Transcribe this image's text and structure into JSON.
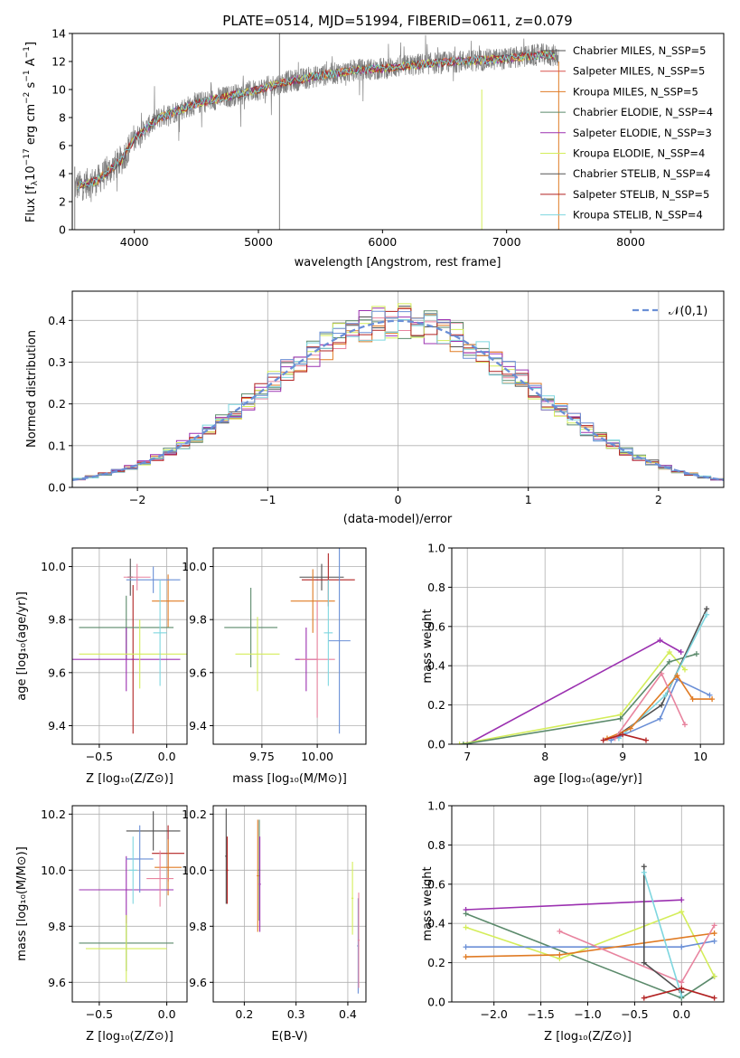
{
  "chart_data": [
    {
      "type": "line",
      "title": "PLATE=0514, MJD=51994, FIBERID=0611, z=0.079",
      "xlabel": "wavelength [Angstrom, rest frame]",
      "ylabel": "Flux [f_λ10^{-17} erg cm^{-2} s^{-1} A^{-1}]",
      "xlim": [
        3500,
        8750
      ],
      "ylim": [
        0,
        14
      ],
      "xticks": [
        "4000",
        "5000",
        "6000",
        "7000",
        "8000"
      ],
      "yticks": [
        "0",
        "2",
        "4",
        "6",
        "8",
        "10",
        "12",
        "14"
      ],
      "series": [
        {
          "name": "Chabrier MILES, N_SSP=5",
          "color": "#4f4f4f"
        },
        {
          "name": "Salpeter MILES, N_SSP=5",
          "color": "#d9534f"
        },
        {
          "name": "Kroupa MILES, N_SSP=5",
          "color": "#e07b24"
        },
        {
          "name": "Chabrier ELODIE, N_SSP=4",
          "color": "#5b8a6b"
        },
        {
          "name": "Salpeter ELODIE, N_SSP=3",
          "color": "#9b30b0"
        },
        {
          "name": "Kroupa ELODIE, N_SSP=4",
          "color": "#d4ed5a"
        },
        {
          "name": "Chabrier STELIB, N_SSP=4",
          "color": "#555555"
        },
        {
          "name": "Salpeter STELIB, N_SSP=5",
          "color": "#b22222"
        },
        {
          "name": "Kroupa STELIB, N_SSP=4",
          "color": "#7ed6df"
        }
      ],
      "spectrum_envelope": {
        "x": [
          3500,
          3700,
          3900,
          4000,
          4200,
          4500,
          4800,
          5000,
          5200,
          5500,
          5800,
          6000,
          6300,
          6600,
          7000,
          7300,
          7400
        ],
        "y": [
          3.0,
          3.5,
          5.0,
          6.5,
          8.0,
          9.0,
          9.6,
          10.0,
          10.5,
          11.0,
          11.4,
          11.5,
          11.8,
          12.0,
          12.2,
          12.5,
          12.4
        ]
      },
      "legend_loc": "upper right",
      "grid": false
    },
    {
      "type": "step",
      "xlabel": "(data-model)/error",
      "ylabel": "Normed distribution",
      "xlim": [
        -2.5,
        2.5
      ],
      "ylim": [
        0,
        0.47
      ],
      "xticks": [
        "−2",
        "−1",
        "0",
        "1",
        "2"
      ],
      "yticks": [
        "0.0",
        "0.1",
        "0.2",
        "0.3",
        "0.4"
      ],
      "legend": "𝒩(0,1)",
      "legend_loc": "upper right",
      "grid": true
    },
    {
      "type": "errorbar",
      "xlabel": "Z [log₁₀(Z/Z⊙)]",
      "ylabel": "age  [log₁₀(age/yr)]",
      "xlim": [
        -0.7,
        0.15
      ],
      "ylim": [
        9.33,
        10.07
      ],
      "xticks": [
        "−0.5",
        "0.0"
      ],
      "yticks": [
        "9.4",
        "9.6",
        "9.8",
        "10.0"
      ],
      "points": [
        {
          "x": -0.27,
          "y": 9.96,
          "xerr": 0.02,
          "yerr": 0.07
        },
        {
          "x": -0.25,
          "y": 9.65,
          "xerr": 0.01,
          "yerr": 0.28
        },
        {
          "x": 0.01,
          "y": 9.87,
          "xerr": 0.12,
          "yerr": 0.1
        },
        {
          "x": -0.3,
          "y": 9.77,
          "xerr": 0.35,
          "yerr": 0.12
        },
        {
          "x": -0.3,
          "y": 9.65,
          "xerr": 0.4,
          "yerr": 0.12
        },
        {
          "x": -0.2,
          "y": 9.67,
          "xerr": 0.45,
          "yerr": 0.13
        },
        {
          "x": -0.1,
          "y": 9.95,
          "xerr": 0.2,
          "yerr": 0.05
        },
        {
          "x": -0.22,
          "y": 9.96,
          "xerr": 0.1,
          "yerr": 0.05
        },
        {
          "x": -0.05,
          "y": 9.75,
          "xerr": 0.05,
          "yerr": 0.2
        }
      ],
      "grid": true
    },
    {
      "type": "errorbar",
      "xlabel": "mass [log₁₀(M/M⊙)]",
      "ylabel": "",
      "xlim": [
        9.53,
        10.22
      ],
      "ylim": [
        9.33,
        10.07
      ],
      "xticks": [
        "9.75",
        "10.00"
      ],
      "yticks": [
        "9.4",
        "9.6",
        "9.8",
        "10.0"
      ],
      "points": [
        {
          "x": 10.02,
          "y": 9.96,
          "xerr": 0.1,
          "yerr": 0.05
        },
        {
          "x": 10.05,
          "y": 9.95,
          "xerr": 0.12,
          "yerr": 0.1
        },
        {
          "x": 9.98,
          "y": 9.87,
          "xerr": 0.1,
          "yerr": 0.12
        },
        {
          "x": 9.7,
          "y": 9.77,
          "xerr": 0.12,
          "yerr": 0.15
        },
        {
          "x": 9.95,
          "y": 9.65,
          "xerr": 0.05,
          "yerr": 0.12
        },
        {
          "x": 9.73,
          "y": 9.67,
          "xerr": 0.1,
          "yerr": 0.14
        },
        {
          "x": 10.1,
          "y": 9.72,
          "xerr": 0.05,
          "yerr": 0.35
        },
        {
          "x": 10.0,
          "y": 9.65,
          "xerr": 0.08,
          "yerr": 0.22
        },
        {
          "x": 10.05,
          "y": 9.75,
          "xerr": 0.02,
          "yerr": 0.2
        }
      ],
      "grid": true
    },
    {
      "type": "line",
      "xlabel": "age  [log₁₀(age/yr)]",
      "ylabel": "mass weight",
      "xlim": [
        6.8,
        10.3
      ],
      "ylim": [
        0,
        1
      ],
      "xticks": [
        "7",
        "8",
        "9",
        "10"
      ],
      "yticks": [
        "0.0",
        "0.2",
        "0.4",
        "0.6",
        "0.8",
        "1.0"
      ],
      "series": [
        {
          "color": "#9b30b0",
          "x": [
            7.0,
            9.48,
            9.75
          ],
          "y": [
            0.0,
            0.53,
            0.47
          ]
        },
        {
          "color": "#d4ed5a",
          "x": [
            6.9,
            8.97,
            9.6,
            9.8
          ],
          "y": [
            0.0,
            0.15,
            0.47,
            0.38
          ]
        },
        {
          "color": "#5b8a6b",
          "x": [
            6.95,
            8.97,
            9.6,
            9.95
          ],
          "y": [
            0.0,
            0.13,
            0.42,
            0.46
          ]
        },
        {
          "color": "#4f4f4f",
          "x": [
            8.95,
            9.5,
            10.08
          ],
          "y": [
            0.05,
            0.2,
            0.69
          ]
        },
        {
          "color": "#7ed6df",
          "x": [
            8.95,
            9.55,
            10.08
          ],
          "y": [
            0.03,
            0.25,
            0.66
          ]
        },
        {
          "color": "#6a8fd6",
          "x": [
            8.85,
            9.48,
            9.7,
            10.12
          ],
          "y": [
            0.02,
            0.13,
            0.33,
            0.25
          ]
        },
        {
          "color": "#e07b24",
          "x": [
            8.8,
            9.1,
            9.7,
            9.9,
            10.15
          ],
          "y": [
            0.03,
            0.08,
            0.35,
            0.23,
            0.23
          ]
        },
        {
          "color": "#e8849f",
          "x": [
            8.9,
            9.5,
            9.8
          ],
          "y": [
            0.03,
            0.36,
            0.1
          ]
        },
        {
          "color": "#b22222",
          "x": [
            8.75,
            9.0,
            9.3
          ],
          "y": [
            0.02,
            0.05,
            0.02
          ]
        }
      ],
      "grid": true
    },
    {
      "type": "errorbar",
      "xlabel": "Z [log₁₀(Z/Z⊙)]",
      "ylabel": "mass [log₁₀(M/M⊙)]",
      "xlim": [
        -0.7,
        0.15
      ],
      "ylim": [
        9.53,
        10.23
      ],
      "xticks": [
        "−0.5",
        "0.0"
      ],
      "yticks": [
        "9.6",
        "9.8",
        "10.0",
        "10.2"
      ],
      "points": [
        {
          "x": -0.1,
          "y": 10.14,
          "xerr": 0.2,
          "yerr": 0.07
        },
        {
          "x": 0.01,
          "y": 10.06,
          "xerr": 0.12,
          "yerr": 0.1
        },
        {
          "x": 0.01,
          "y": 10.01,
          "xerr": 0.1,
          "yerr": 0.1
        },
        {
          "x": -0.3,
          "y": 9.74,
          "xerr": 0.35,
          "yerr": 0.1
        },
        {
          "x": -0.3,
          "y": 9.93,
          "xerr": 0.35,
          "yerr": 0.12
        },
        {
          "x": -0.3,
          "y": 9.72,
          "xerr": 0.3,
          "yerr": 0.12
        },
        {
          "x": -0.2,
          "y": 10.04,
          "xerr": 0.1,
          "yerr": 0.12
        },
        {
          "x": -0.05,
          "y": 9.97,
          "xerr": 0.1,
          "yerr": 0.1
        },
        {
          "x": -0.25,
          "y": 10.0,
          "xerr": 0.03,
          "yerr": 0.12
        }
      ],
      "grid": true
    },
    {
      "type": "errorbar",
      "xlabel": "E(B-V)",
      "ylabel": "",
      "xlim": [
        0.14,
        0.435
      ],
      "ylim": [
        9.53,
        10.23
      ],
      "xticks": [
        "0.2",
        "0.3",
        "0.4"
      ],
      "yticks": [
        "9.6",
        "9.8",
        "10.0",
        "10.2"
      ],
      "points": [
        {
          "x": 0.165,
          "y": 10.05,
          "xerr": 0.002,
          "yerr": 0.17
        },
        {
          "x": 0.167,
          "y": 10.0,
          "xerr": 0.002,
          "yerr": 0.12
        },
        {
          "x": 0.226,
          "y": 9.98,
          "xerr": 0.002,
          "yerr": 0.2
        },
        {
          "x": 0.229,
          "y": 10.0,
          "xerr": 0.002,
          "yerr": 0.18
        },
        {
          "x": 0.23,
          "y": 9.95,
          "xerr": 0.002,
          "yerr": 0.17
        },
        {
          "x": 0.409,
          "y": 9.9,
          "xerr": 0.002,
          "yerr": 0.13
        },
        {
          "x": 0.42,
          "y": 9.73,
          "xerr": 0.002,
          "yerr": 0.17
        },
        {
          "x": 0.421,
          "y": 9.75,
          "xerr": 0.002,
          "yerr": 0.17
        }
      ],
      "grid": true
    },
    {
      "type": "line",
      "xlabel": "Z [log₁₀(Z/Z⊙)]",
      "ylabel": "mass weight",
      "xlim": [
        -2.45,
        0.45
      ],
      "ylim": [
        0,
        1
      ],
      "xticks": [
        "−2.0",
        "−1.5",
        "−1.0",
        "−0.5",
        "0.0"
      ],
      "yticks": [
        "0.0",
        "0.2",
        "0.4",
        "0.6",
        "0.8",
        "1.0"
      ],
      "series": [
        {
          "color": "#9b30b0",
          "x": [
            -2.3,
            0.0
          ],
          "y": [
            0.47,
            0.52
          ]
        },
        {
          "color": "#5b8a6b",
          "x": [
            -2.3,
            0.0,
            0.35
          ],
          "y": [
            0.45,
            0.02,
            0.13
          ]
        },
        {
          "color": "#d4ed5a",
          "x": [
            -2.3,
            -1.3,
            0.0,
            0.35
          ],
          "y": [
            0.38,
            0.22,
            0.46,
            0.13
          ]
        },
        {
          "color": "#6a8fd6",
          "x": [
            -2.3,
            0.0,
            0.35
          ],
          "y": [
            0.28,
            0.28,
            0.31
          ]
        },
        {
          "color": "#e07b24",
          "x": [
            -2.3,
            -1.3,
            0.35
          ],
          "y": [
            0.23,
            0.24,
            0.35
          ]
        },
        {
          "color": "#e8849f",
          "x": [
            -1.3,
            0.0,
            0.35
          ],
          "y": [
            0.36,
            0.1,
            0.39
          ]
        },
        {
          "color": "#4f4f4f",
          "x": [
            -0.4,
            -0.4,
            0.0
          ],
          "y": [
            0.69,
            0.2,
            0.05
          ]
        },
        {
          "color": "#7ed6df",
          "x": [
            -0.4,
            0.0
          ],
          "y": [
            0.66,
            0.03
          ]
        },
        {
          "color": "#b22222",
          "x": [
            -0.4,
            0.0,
            0.35
          ],
          "y": [
            0.02,
            0.07,
            0.02
          ]
        }
      ],
      "grid": true
    }
  ]
}
